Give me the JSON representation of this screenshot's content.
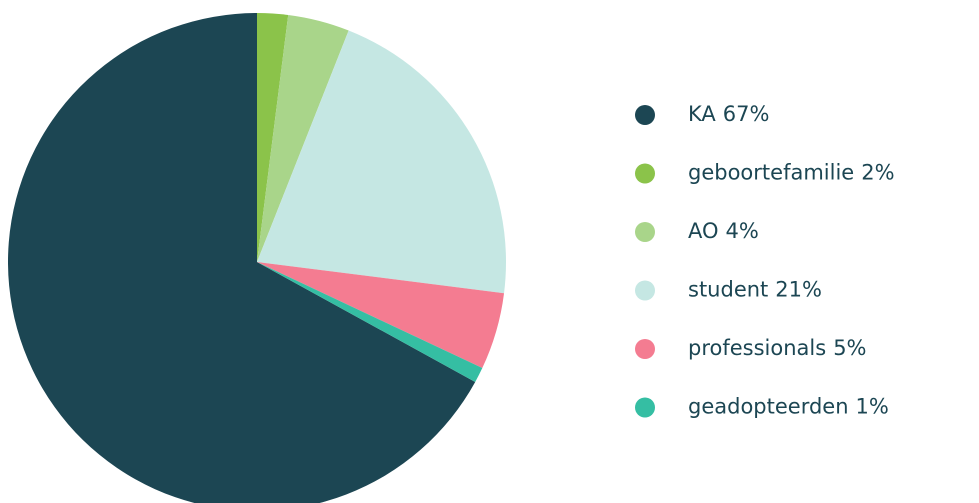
{
  "chart_data": {
    "type": "pie",
    "categories": [
      "KA",
      "geboortefamilie",
      "AO",
      "student",
      "professionals",
      "geadopteerden"
    ],
    "values": [
      67,
      2,
      4,
      21,
      5,
      1
    ],
    "value_labels": [
      "67%",
      "2%",
      "4%",
      "21%",
      "5%",
      "1%"
    ],
    "colors": [
      "#1c4653",
      "#8bc34a",
      "#a9d58a",
      "#c5e7e3",
      "#f47c91",
      "#35bea3"
    ],
    "legend": "right"
  }
}
